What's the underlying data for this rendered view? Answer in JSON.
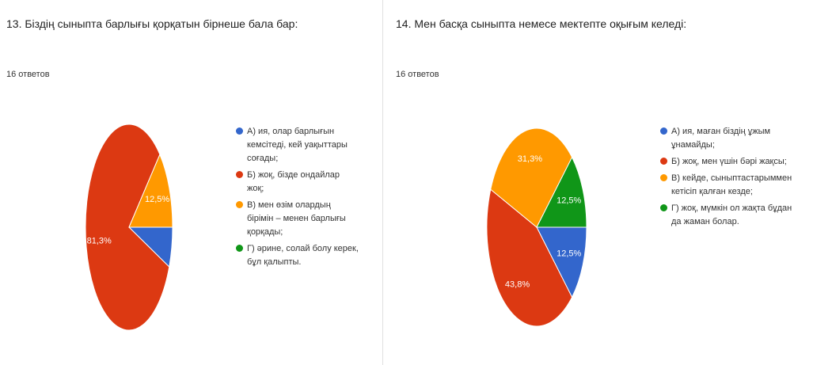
{
  "chart_data": [
    {
      "type": "pie",
      "title": "13. Біздің сыныпта барлығы қорқатын бірнеше бала бар:",
      "subtitle": "16 ответов",
      "categories": [
        "А) ия, олар барлығын кемсітеді, кей уақыттары соғады;",
        "Б) жоқ, бізде ондайлар жоқ;",
        "В) мен өзім олардың бірімін – менен барлығы қорқады;",
        "Г) әрине, солай болу керек, бұл қалыпты."
      ],
      "values": [
        6.3,
        81.3,
        12.5,
        0
      ],
      "value_labels": [
        null,
        "81,3%",
        "12,5%",
        null
      ],
      "colors": [
        "#3366cc",
        "#dc3912",
        "#ff9900",
        "#109618"
      ]
    },
    {
      "type": "pie",
      "title": "14. Мен басқа сыныпта немесе мектепте оқығым келеді:",
      "subtitle": "16 ответов",
      "categories": [
        "А) ия, маған біздің ұжым ұнамайды;",
        "Б) жоқ, мен үшін бәрі жақсы;",
        "В) кейде, сыныптастарыммен кетісіп қалған кезде;",
        "Г) жоқ, мүмкін ол жақта бұдан да жаман болар."
      ],
      "values": [
        12.5,
        43.8,
        31.3,
        12.5
      ],
      "value_labels": [
        "12,5%",
        "43,8%",
        "31,3%",
        "12,5%"
      ],
      "colors": [
        "#3366cc",
        "#dc3912",
        "#ff9900",
        "#109618"
      ]
    }
  ]
}
